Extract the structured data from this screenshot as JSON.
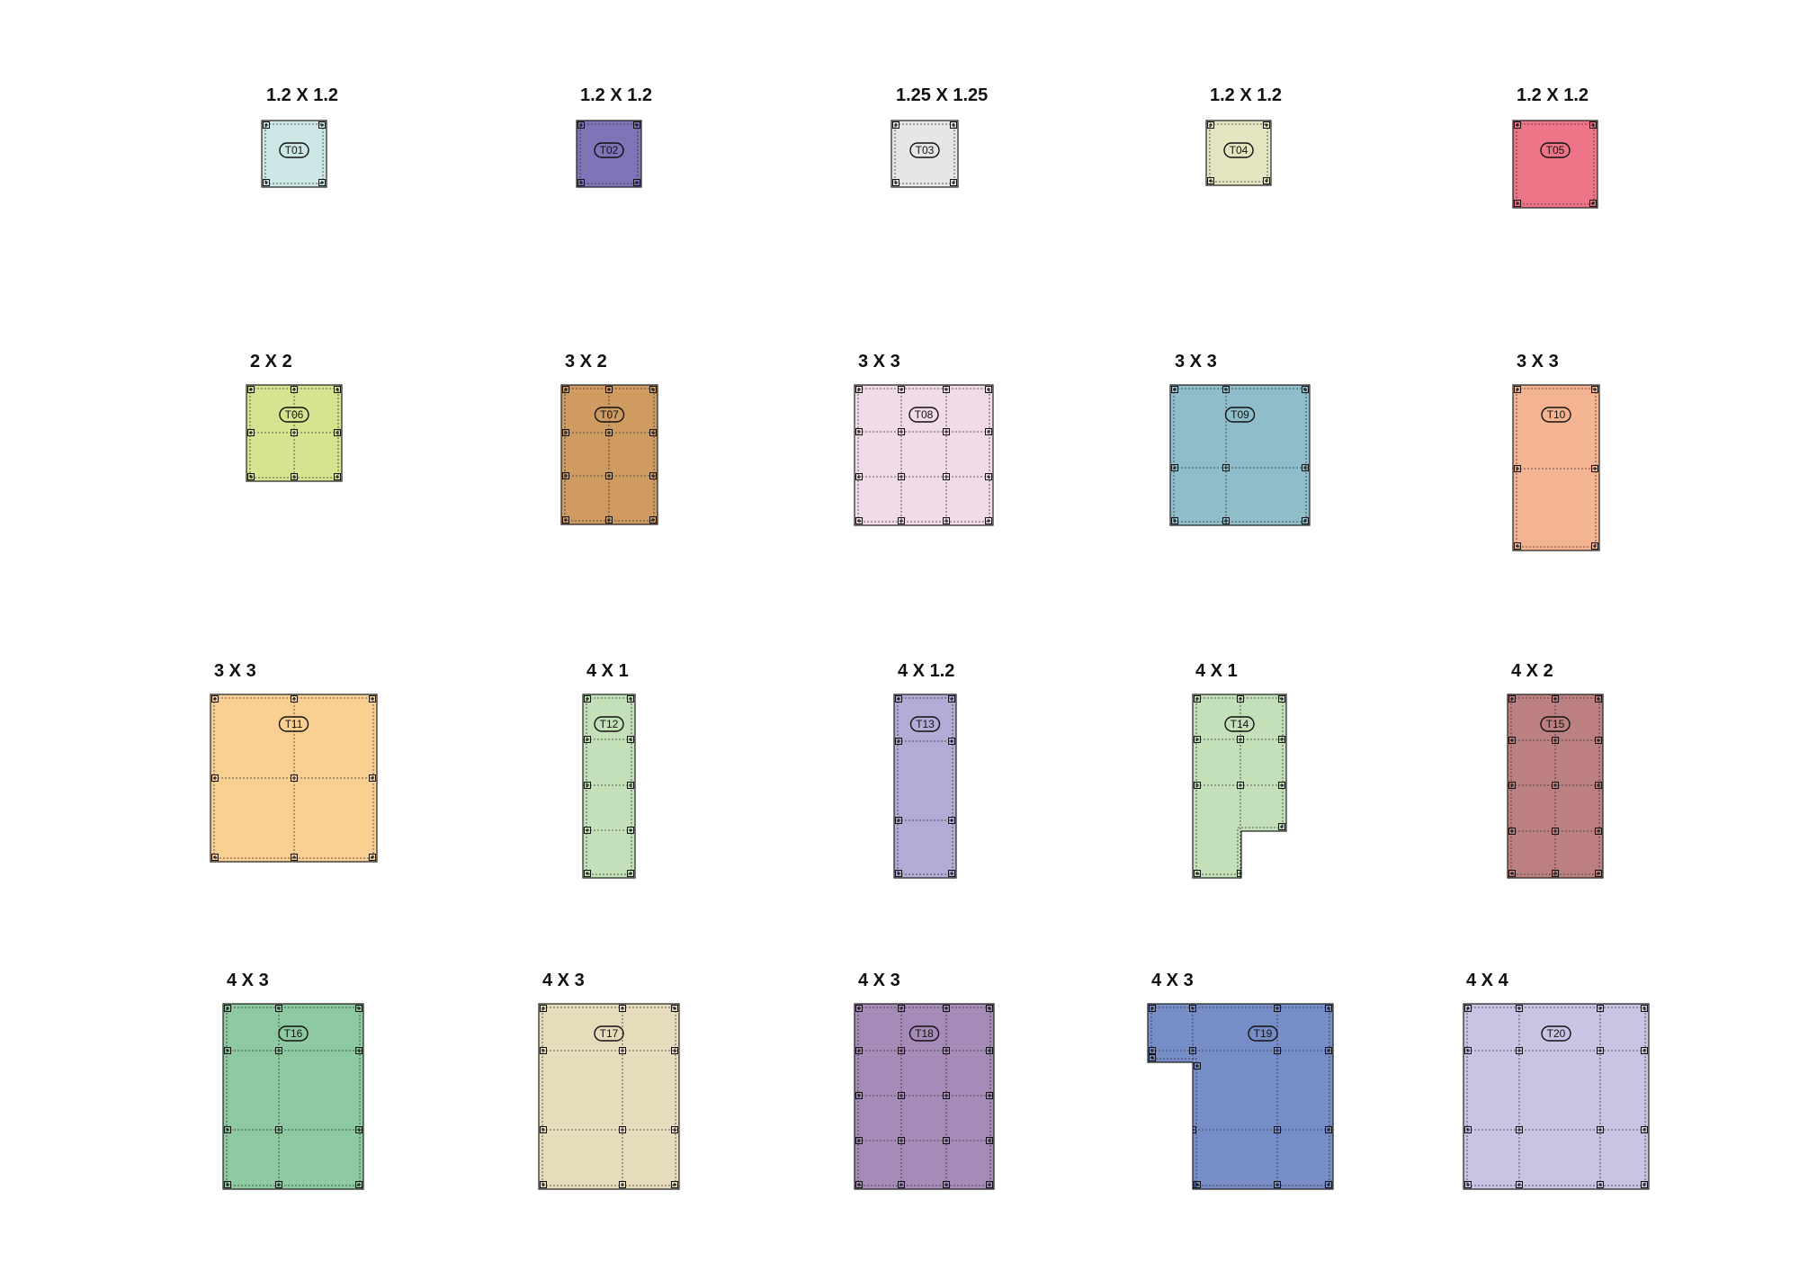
{
  "tiles": [
    {
      "id": "T01",
      "size": "1.2 X 1.2",
      "color": "#cde7e6"
    },
    {
      "id": "T02",
      "size": "1.2 X 1.2",
      "color": "#8073b7"
    },
    {
      "id": "T03",
      "size": "1.25 X 1.25",
      "color": "#e6e6e6"
    },
    {
      "id": "T04",
      "size": "1.2 X 1.2",
      "color": "#e6e5c2"
    },
    {
      "id": "T05",
      "size": "1.2 X 1.2",
      "color": "#ed7587"
    },
    {
      "id": "T06",
      "size": "2 X 2",
      "color": "#d6e490"
    },
    {
      "id": "T07",
      "size": "3 X 2",
      "color": "#cf9b61"
    },
    {
      "id": "T08",
      "size": "3 X 3",
      "color": "#f2dbe8"
    },
    {
      "id": "T09",
      "size": "3 X 3",
      "color": "#8fbdc9"
    },
    {
      "id": "T10",
      "size": "3 X 3",
      "color": "#f5b491"
    },
    {
      "id": "T11",
      "size": "3 X 3",
      "color": "#fad092"
    },
    {
      "id": "T12",
      "size": "4 X 1",
      "color": "#c4e0b8"
    },
    {
      "id": "T13",
      "size": "4 X 1.2",
      "color": "#b3acd6"
    },
    {
      "id": "T14",
      "size": "4 X 1",
      "color": "#c4e0b8"
    },
    {
      "id": "T15",
      "size": "4 X 2",
      "color": "#bd8080"
    },
    {
      "id": "T16",
      "size": "4 X 3",
      "color": "#8dc9a1"
    },
    {
      "id": "T17",
      "size": "4 X 3",
      "color": "#e6dbbb"
    },
    {
      "id": "T18",
      "size": "4 X 3",
      "color": "#a68bb8"
    },
    {
      "id": "T19",
      "size": "4 X 3",
      "color": "#768dc7"
    },
    {
      "id": "T20",
      "size": "4 X 4",
      "color": "#c8c5e4"
    }
  ]
}
